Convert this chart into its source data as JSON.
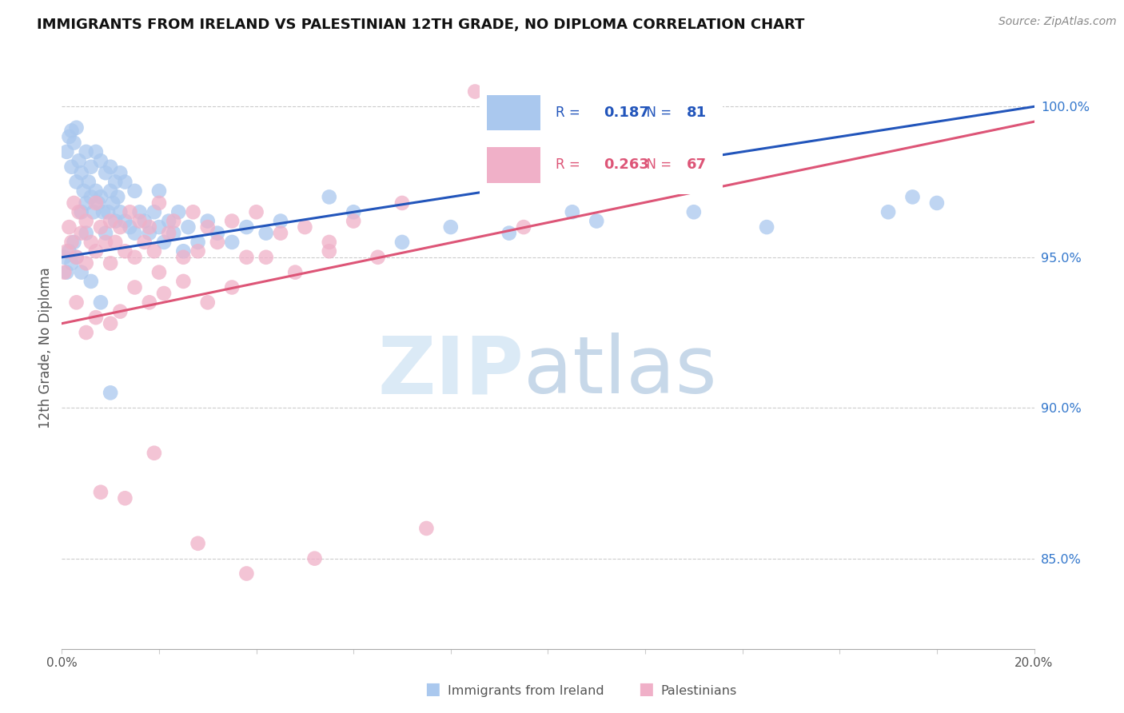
{
  "title": "IMMIGRANTS FROM IRELAND VS PALESTINIAN 12TH GRADE, NO DIPLOMA CORRELATION CHART",
  "source": "Source: ZipAtlas.com",
  "ylabel": "12th Grade, No Diploma",
  "y_ticks": [
    85.0,
    90.0,
    95.0,
    100.0
  ],
  "x_min": 0.0,
  "x_max": 20.0,
  "y_min": 82.0,
  "y_max": 102.0,
  "legend_blue_r": "0.187",
  "legend_blue_n": "81",
  "legend_pink_r": "0.263",
  "legend_pink_n": "67",
  "blue_color": "#aac8ee",
  "pink_color": "#f0b0c8",
  "blue_line_color": "#2255bb",
  "pink_line_color": "#dd5577",
  "right_axis_color": "#3377cc",
  "blue_line_x0": 0.0,
  "blue_line_y0": 95.0,
  "blue_line_x1": 20.0,
  "blue_line_y1": 100.0,
  "pink_line_x0": 0.0,
  "pink_line_y0": 92.8,
  "pink_line_x1": 20.0,
  "pink_line_y1": 99.5,
  "blue_scatter_x": [
    0.1,
    0.15,
    0.2,
    0.2,
    0.25,
    0.3,
    0.3,
    0.35,
    0.4,
    0.4,
    0.45,
    0.5,
    0.5,
    0.55,
    0.6,
    0.6,
    0.65,
    0.7,
    0.7,
    0.75,
    0.8,
    0.8,
    0.85,
    0.9,
    0.9,
    0.95,
    1.0,
    1.0,
    1.05,
    1.1,
    1.1,
    1.15,
    1.2,
    1.2,
    1.3,
    1.3,
    1.4,
    1.5,
    1.5,
    1.6,
    1.7,
    1.8,
    1.9,
    2.0,
    2.0,
    2.1,
    2.2,
    2.3,
    2.4,
    2.5,
    2.6,
    2.8,
    3.0,
    3.2,
    3.5,
    3.8,
    4.2,
    4.5,
    5.5,
    6.0,
    7.0,
    8.0,
    9.2,
    10.5,
    11.0,
    13.0,
    14.5,
    17.0,
    17.5,
    18.0,
    0.05,
    0.1,
    0.15,
    0.2,
    0.25,
    0.3,
    0.4,
    0.5,
    0.6,
    0.8,
    1.0
  ],
  "blue_scatter_y": [
    98.5,
    99.0,
    99.2,
    98.0,
    98.8,
    99.3,
    97.5,
    98.2,
    97.8,
    96.5,
    97.2,
    98.5,
    96.8,
    97.5,
    97.0,
    98.0,
    96.5,
    97.2,
    98.5,
    96.8,
    97.0,
    98.2,
    96.5,
    97.8,
    95.8,
    96.5,
    97.2,
    98.0,
    96.8,
    97.5,
    96.2,
    97.0,
    96.5,
    97.8,
    96.2,
    97.5,
    96.0,
    97.2,
    95.8,
    96.5,
    96.2,
    95.8,
    96.5,
    96.0,
    97.2,
    95.5,
    96.2,
    95.8,
    96.5,
    95.2,
    96.0,
    95.5,
    96.2,
    95.8,
    95.5,
    96.0,
    95.8,
    96.2,
    97.0,
    96.5,
    95.5,
    96.0,
    95.8,
    96.5,
    96.2,
    96.5,
    96.0,
    96.5,
    97.0,
    96.8,
    95.0,
    94.5,
    95.2,
    94.8,
    95.5,
    95.0,
    94.5,
    95.8,
    94.2,
    93.5,
    90.5
  ],
  "pink_scatter_x": [
    0.05,
    0.1,
    0.15,
    0.2,
    0.25,
    0.3,
    0.35,
    0.4,
    0.5,
    0.5,
    0.6,
    0.7,
    0.7,
    0.8,
    0.9,
    1.0,
    1.0,
    1.1,
    1.2,
    1.3,
    1.4,
    1.5,
    1.6,
    1.7,
    1.8,
    1.9,
    2.0,
    2.0,
    2.2,
    2.3,
    2.5,
    2.7,
    2.8,
    3.0,
    3.2,
    3.5,
    3.8,
    4.0,
    4.5,
    5.0,
    5.5,
    6.0,
    6.5,
    7.0,
    8.5,
    9.5,
    0.3,
    0.5,
    0.7,
    1.0,
    1.2,
    1.5,
    1.8,
    2.1,
    2.5,
    3.0,
    3.5,
    4.2,
    4.8,
    5.5,
    0.8,
    1.3,
    1.9,
    2.8,
    3.8,
    5.2,
    7.5
  ],
  "pink_scatter_y": [
    94.5,
    95.2,
    96.0,
    95.5,
    96.8,
    95.0,
    96.5,
    95.8,
    96.2,
    94.8,
    95.5,
    96.8,
    95.2,
    96.0,
    95.5,
    96.2,
    94.8,
    95.5,
    96.0,
    95.2,
    96.5,
    95.0,
    96.2,
    95.5,
    96.0,
    95.2,
    96.8,
    94.5,
    95.8,
    96.2,
    95.0,
    96.5,
    95.2,
    96.0,
    95.5,
    96.2,
    95.0,
    96.5,
    95.8,
    96.0,
    95.5,
    96.2,
    95.0,
    96.8,
    100.5,
    96.0,
    93.5,
    92.5,
    93.0,
    92.8,
    93.2,
    94.0,
    93.5,
    93.8,
    94.2,
    93.5,
    94.0,
    95.0,
    94.5,
    95.2,
    87.2,
    87.0,
    88.5,
    85.5,
    84.5,
    85.0,
    86.0
  ]
}
